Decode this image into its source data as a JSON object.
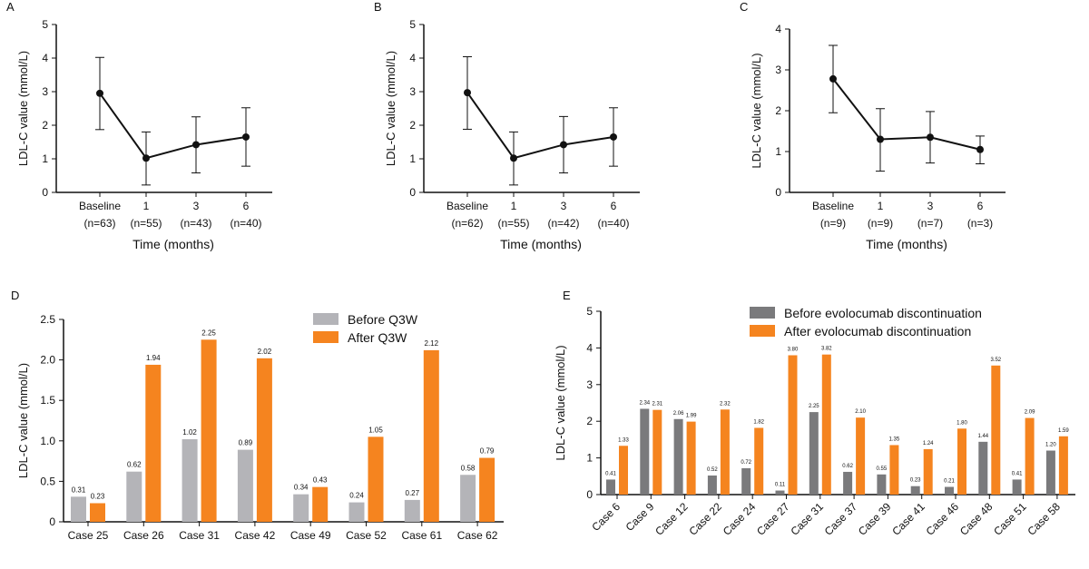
{
  "colors": {
    "before_d": "#b4b4b8",
    "before_e": "#7a7a7c",
    "after": "#f5841f",
    "line": "#111111"
  },
  "chart_data": [
    {
      "panel": "A",
      "type": "line",
      "ylabel": "LDL-C value (mmol/L)",
      "xlabel": "Time (months)",
      "ylim": [
        0,
        5
      ],
      "yticks": [
        0,
        1,
        2,
        3,
        4,
        5
      ],
      "categories": [
        "Baseline",
        "1",
        "3",
        "6"
      ],
      "n_labels": [
        "(n=63)",
        "(n=55)",
        "(n=43)",
        "(n=40)"
      ],
      "values": [
        2.95,
        1.02,
        1.42,
        1.65
      ],
      "err_low": [
        1.87,
        0.22,
        0.58,
        0.78
      ],
      "err_high": [
        4.02,
        1.8,
        2.25,
        2.52
      ]
    },
    {
      "panel": "B",
      "type": "line",
      "ylabel": "LDL-C value (mmol/L)",
      "xlabel": "Time (months)",
      "ylim": [
        0,
        5
      ],
      "yticks": [
        0,
        1,
        2,
        3,
        4,
        5
      ],
      "categories": [
        "Baseline",
        "1",
        "3",
        "6"
      ],
      "n_labels": [
        "(n=62)",
        "(n=55)",
        "(n=42)",
        "(n=40)"
      ],
      "values": [
        2.97,
        1.02,
        1.42,
        1.65
      ],
      "err_low": [
        1.88,
        0.22,
        0.58,
        0.78
      ],
      "err_high": [
        4.04,
        1.8,
        2.26,
        2.52
      ]
    },
    {
      "panel": "C",
      "type": "line",
      "ylabel": "LDL-C value (mmol/L)",
      "xlabel": "Time (months)",
      "ylim": [
        0,
        4
      ],
      "yticks": [
        0,
        1,
        2,
        3,
        4
      ],
      "categories": [
        "Baseline",
        "1",
        "3",
        "6"
      ],
      "n_labels": [
        "(n=9)",
        "(n=9)",
        "(n=7)",
        "(n=3)"
      ],
      "values": [
        2.78,
        1.3,
        1.35,
        1.05
      ],
      "err_low": [
        1.95,
        0.52,
        0.72,
        0.7
      ],
      "err_high": [
        3.6,
        2.05,
        1.98,
        1.38
      ]
    },
    {
      "panel": "D",
      "type": "bar",
      "ylabel": "LDL-C value (mmol/L)",
      "ylim": [
        0,
        2.5
      ],
      "yticks": [
        "0",
        "0.5",
        "1.0",
        "1.5",
        "2.0",
        "2.5"
      ],
      "legend_position": "top-right",
      "categories": [
        "Case 25",
        "Case 26",
        "Case 31",
        "Case 42",
        "Case 49",
        "Case 52",
        "Case 61",
        "Case 62"
      ],
      "series": [
        {
          "name": "Before Q3W",
          "values": [
            0.31,
            0.62,
            1.02,
            0.89,
            0.34,
            0.24,
            0.27,
            0.58
          ]
        },
        {
          "name": "After Q3W",
          "values": [
            0.23,
            1.94,
            2.25,
            2.02,
            0.43,
            1.05,
            2.12,
            0.79
          ]
        }
      ]
    },
    {
      "panel": "E",
      "type": "bar",
      "ylabel": "LDL-C value (mmol/L)",
      "ylim": [
        0,
        5
      ],
      "yticks": [
        "0",
        "1",
        "2",
        "3",
        "4",
        "5"
      ],
      "legend_position": "top",
      "categories": [
        "Case 6",
        "Case 9",
        "Case 12",
        "Case 22",
        "Case 24",
        "Case 27",
        "Case 31",
        "Case 37",
        "Case 39",
        "Case 41",
        "Case 46",
        "Case 48",
        "Case 51",
        "Case 58"
      ],
      "series": [
        {
          "name": "Before evolocumab discontinuation",
          "values": [
            0.41,
            2.34,
            2.06,
            0.52,
            0.72,
            0.11,
            2.25,
            0.62,
            0.55,
            0.23,
            0.21,
            1.44,
            0.41,
            1.2
          ]
        },
        {
          "name": "After evolocumab discontinuation",
          "values": [
            1.33,
            2.31,
            1.99,
            2.32,
            1.82,
            3.8,
            3.82,
            2.1,
            1.35,
            1.24,
            1.8,
            3.52,
            2.09,
            1.59
          ]
        }
      ]
    }
  ]
}
